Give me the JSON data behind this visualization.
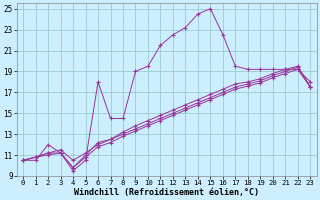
{
  "xlabel": "Windchill (Refroidissement éolien,°C)",
  "bg_color": "#cceeff",
  "grid_color": "#99cccc",
  "line_color": "#993399",
  "xlim": [
    -0.5,
    23.5
  ],
  "ylim": [
    9,
    25.5
  ],
  "xticks": [
    0,
    1,
    2,
    3,
    4,
    5,
    6,
    7,
    8,
    9,
    10,
    11,
    12,
    13,
    14,
    15,
    16,
    17,
    18,
    19,
    20,
    21,
    22,
    23
  ],
  "yticks": [
    9,
    11,
    13,
    15,
    17,
    19,
    21,
    23,
    25
  ],
  "line1_x": [
    0,
    1,
    2,
    3,
    4,
    5,
    6,
    7,
    8,
    9,
    10,
    11,
    12,
    13,
    14,
    15,
    16,
    17,
    18,
    19,
    20,
    21,
    22,
    23
  ],
  "line1_y": [
    10.5,
    10.5,
    12.0,
    11.2,
    9.5,
    10.5,
    18.0,
    14.5,
    14.5,
    19.0,
    19.5,
    21.5,
    22.5,
    23.2,
    24.5,
    25.0,
    22.5,
    19.5,
    19.2,
    19.2,
    19.2,
    19.2,
    19.2,
    18.0
  ],
  "line2_x": [
    0,
    1,
    2,
    3,
    4,
    5,
    6,
    7,
    8,
    9,
    10,
    11,
    12,
    13,
    14,
    15,
    16,
    17,
    18,
    19,
    20,
    21,
    22,
    23
  ],
  "line2_y": [
    10.5,
    10.8,
    11.2,
    11.5,
    10.5,
    11.2,
    12.0,
    12.5,
    13.2,
    13.8,
    14.3,
    14.8,
    15.3,
    15.8,
    16.3,
    16.8,
    17.3,
    17.8,
    18.0,
    18.3,
    18.8,
    19.2,
    19.5,
    17.5
  ],
  "line3_x": [
    0,
    1,
    2,
    3,
    4,
    5,
    6,
    7,
    8,
    9,
    10,
    11,
    12,
    13,
    14,
    15,
    16,
    17,
    18,
    19,
    20,
    21,
    22,
    23
  ],
  "line3_y": [
    10.5,
    10.8,
    11.0,
    11.2,
    9.8,
    10.8,
    11.8,
    12.2,
    12.8,
    13.3,
    13.8,
    14.3,
    14.8,
    15.3,
    15.8,
    16.3,
    16.8,
    17.3,
    17.6,
    17.9,
    18.4,
    18.8,
    19.2,
    17.5
  ],
  "line4_x": [
    0,
    1,
    2,
    3,
    4,
    5,
    6,
    7,
    8,
    9,
    10,
    11,
    12,
    13,
    14,
    15,
    16,
    17,
    18,
    19,
    20,
    21,
    22,
    23
  ],
  "line4_y": [
    10.5,
    10.8,
    11.2,
    11.2,
    9.8,
    11.0,
    12.2,
    12.5,
    13.0,
    13.5,
    14.0,
    14.5,
    15.0,
    15.5,
    16.0,
    16.5,
    17.0,
    17.5,
    17.8,
    18.1,
    18.6,
    19.0,
    19.4,
    17.5
  ]
}
